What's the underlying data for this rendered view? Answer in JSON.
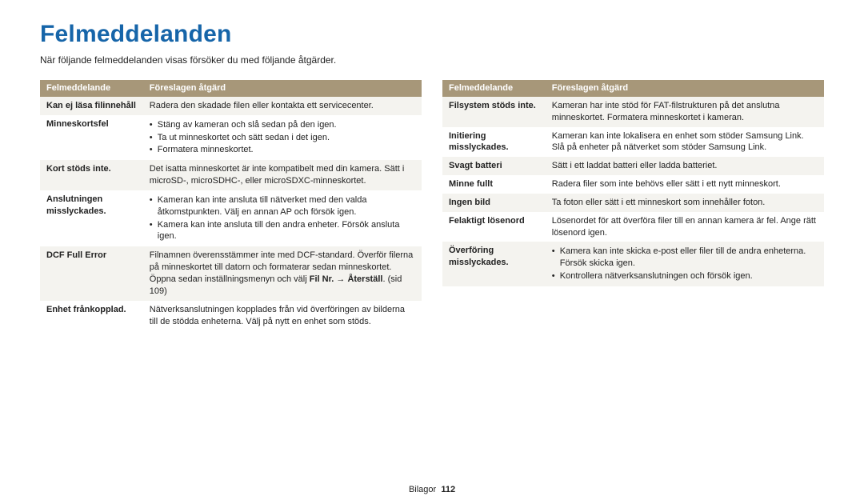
{
  "heading": "Felmeddelanden",
  "intro": "När följande felmeddelanden visas försöker du med följande åtgärder.",
  "headers": {
    "col1": "Felmeddelande",
    "col2": "Föreslagen åtgärd"
  },
  "left": [
    {
      "label": "Kan ej läsa filinnehåll",
      "text": "Radera den skadade filen eller kontakta ett servicecenter.",
      "stripe": true
    },
    {
      "label": "Minneskortsfel",
      "bullets": [
        "Stäng av kameran och slå sedan på den igen.",
        "Ta ut minneskortet och sätt sedan i det igen.",
        "Formatera minneskortet."
      ]
    },
    {
      "label": "Kort stöds inte.",
      "text": "Det isatta minneskortet är inte kompatibelt med din kamera. Sätt i microSD-, microSDHC-, eller microSDXC-minneskortet.",
      "stripe": true
    },
    {
      "label": "Anslutningen misslyckades.",
      "bullets": [
        "Kameran kan inte ansluta till nätverket med den valda åtkomstpunkten. Välj en annan AP och försök igen.",
        "Kamera kan inte ansluta till den andra enheter. Försök ansluta igen."
      ]
    },
    {
      "label": "DCF Full Error",
      "htmlRow": true,
      "stripe": true,
      "prefix": "Filnamnen överensstämmer inte med DCF-standard. Överför filerna på minneskortet till datorn och formaterar sedan minneskortet. Öppna sedan inställningsmenyn och välj ",
      "bold1": "Fil Nr.",
      "arrow": " → ",
      "bold2": "Återställ",
      "suffix": ". (sid 109)"
    },
    {
      "label": "Enhet frånkopplad.",
      "text": "Nätverksanslutningen kopplades från vid överföringen av bilderna till de stödda enheterna. Välj på nytt en enhet som stöds."
    }
  ],
  "right": [
    {
      "label": "Filsystem stöds inte.",
      "text": "Kameran har inte stöd för FAT-filstrukturen på det anslutna minneskortet. Formatera minneskortet i kameran.",
      "stripe": true
    },
    {
      "label": "Initiering misslyckades.",
      "text": "Kameran kan inte lokalisera en enhet som stöder Samsung Link. Slå på enheter på nätverket som stöder Samsung Link."
    },
    {
      "label": "Svagt batteri",
      "text": "Sätt i ett laddat batteri eller ladda batteriet.",
      "stripe": true
    },
    {
      "label": "Minne fullt",
      "text": "Radera filer som inte behövs eller sätt i ett nytt minneskort."
    },
    {
      "label": "Ingen bild",
      "text": "Ta foton eller sätt i ett minneskort som innehåller foton.",
      "stripe": true
    },
    {
      "label": "Felaktigt lösenord",
      "text": "Lösenordet för att överföra filer till en annan kamera är fel. Ange rätt lösenord igen."
    },
    {
      "label": "Överföring misslyckades.",
      "bullets": [
        "Kamera kan inte skicka e-post eller filer till de andra enheterna. Försök skicka igen.",
        "Kontrollera nätverksanslutningen och försök igen."
      ],
      "stripe": true
    }
  ],
  "footer": {
    "section": "Bilagor",
    "page": "112"
  }
}
